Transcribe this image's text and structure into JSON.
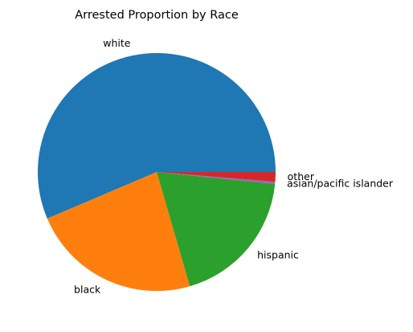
{
  "chart_data": {
    "type": "pie",
    "title": "Arrested Proportion by Race",
    "categories": [
      "white",
      "black",
      "hispanic",
      "asian/pacific islander",
      "other"
    ],
    "values": [
      56.4,
      23.1,
      18.9,
      0.3,
      1.3
    ],
    "colors": [
      "#1f77b4",
      "#ff7f0e",
      "#2ca02c",
      "#9467bd",
      "#d62728"
    ],
    "start_angle_deg": 0,
    "direction": "counterclockwise",
    "legend": "none"
  }
}
